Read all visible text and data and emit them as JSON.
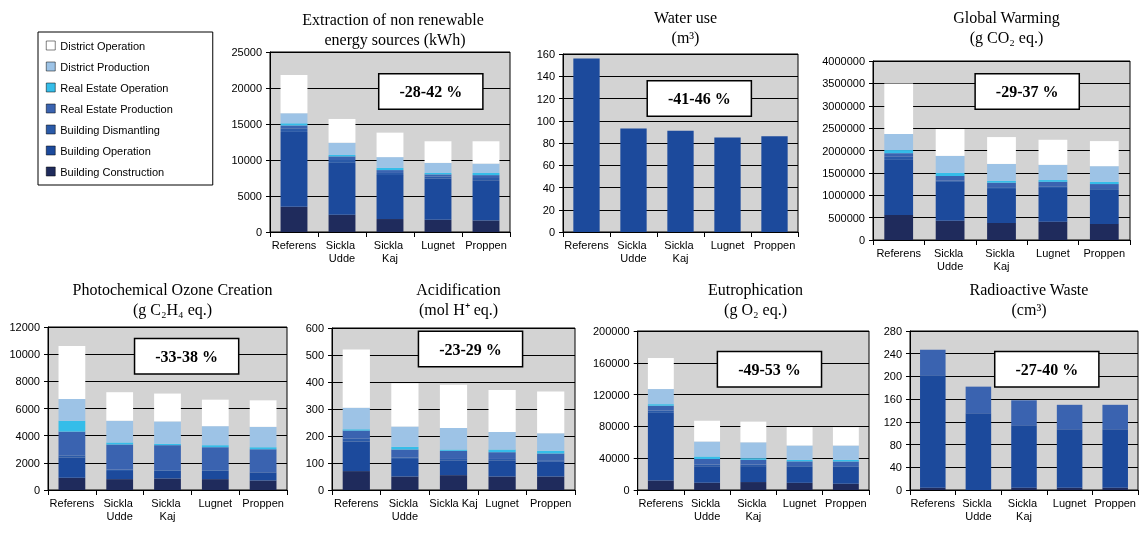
{
  "chart_data": [
    {
      "type": "bar",
      "title": "Extraction of non renewable energy sources (kWh)",
      "categories": [
        "Referens",
        "Sickla Udde",
        "Sickla Kaj",
        "Lugnet",
        "Proppen"
      ],
      "stacked": true,
      "ylim": [
        0,
        25000
      ],
      "yticks": [
        0,
        5000,
        10000,
        15000,
        20000,
        25000
      ],
      "grid": "y",
      "legend": "left",
      "annotations": [
        "-28-42 %"
      ],
      "series": [
        {
          "name": "Building Construction",
          "color": "#1f2b5c",
          "values": [
            3500,
            2400,
            1800,
            1700,
            1600
          ]
        },
        {
          "name": "Building Operation",
          "color": "#1c4a9c",
          "values": [
            10400,
            7200,
            6100,
            5700,
            5600
          ]
        },
        {
          "name": "Building Dismantling",
          "color": "#2a5aa8",
          "values": [
            500,
            400,
            300,
            300,
            300
          ]
        },
        {
          "name": "Real Estate Production",
          "color": "#3a63b0",
          "values": [
            400,
            500,
            400,
            300,
            400
          ]
        },
        {
          "name": "Real Estate Operation",
          "color": "#35bde9",
          "values": [
            300,
            200,
            300,
            200,
            300
          ]
        },
        {
          "name": "District Production",
          "color": "#9dc3e6",
          "values": [
            1400,
            1700,
            1500,
            1400,
            1300
          ]
        },
        {
          "name": "District Operation",
          "color": "#ffffff",
          "values": [
            5300,
            3300,
            3400,
            3000,
            3100
          ]
        }
      ]
    },
    {
      "type": "bar",
      "title": "Water use",
      "subtitle": "(m³)",
      "categories": [
        "Referens",
        "Sickla Udde",
        "Sickla Kaj",
        "Lugnet",
        "Proppen"
      ],
      "values": [
        156,
        93,
        91,
        85,
        86
      ],
      "color": "#1c4a9c",
      "ylim": [
        0,
        160
      ],
      "yticks": [
        0,
        20,
        40,
        60,
        80,
        100,
        120,
        140,
        160
      ],
      "grid": "y",
      "annotations": [
        "-41-46 %"
      ]
    },
    {
      "type": "bar",
      "title": "Global Warming",
      "subtitle": "(g CO₂ eq.)",
      "categories": [
        "Referens",
        "Sickla Udde",
        "Sickla Kaj",
        "Lugnet",
        "Proppen"
      ],
      "stacked": true,
      "ylim": [
        0,
        4000000
      ],
      "yticks": [
        0,
        500000,
        1000000,
        1500000,
        2000000,
        2500000,
        3000000,
        3500000,
        4000000
      ],
      "grid": "y",
      "annotations": [
        "-29-37 %"
      ],
      "series": [
        {
          "color": "#1f2b5c",
          "values": [
            560000,
            430000,
            380000,
            410000,
            360000
          ]
        },
        {
          "color": "#1c4a9c",
          "values": [
            1230000,
            870000,
            760000,
            750000,
            760000
          ]
        },
        {
          "color": "#2a5aa8",
          "values": [
            70000,
            30000,
            40000,
            40000,
            40000
          ]
        },
        {
          "color": "#3a63b0",
          "values": [
            80000,
            100000,
            100000,
            100000,
            90000
          ]
        },
        {
          "color": "#35bde9",
          "values": [
            70000,
            70000,
            40000,
            40000,
            50000
          ]
        },
        {
          "color": "#9dc3e6",
          "values": [
            360000,
            380000,
            380000,
            340000,
            350000
          ]
        },
        {
          "color": "#ffffff",
          "values": [
            1130000,
            600000,
            600000,
            560000,
            560000
          ]
        }
      ]
    },
    {
      "type": "bar",
      "title": "Photochemical Ozone Creation",
      "subtitle": "(g C₂H₄ eq.)",
      "categories": [
        "Referens",
        "Sickla Udde",
        "Sickla Kaj",
        "Lugnet",
        "Proppen"
      ],
      "stacked": true,
      "ylim": [
        0,
        12000
      ],
      "yticks": [
        0,
        2000,
        4000,
        6000,
        8000,
        10000,
        12000
      ],
      "grid": "y",
      "annotations": [
        "-33-38 %"
      ],
      "series": [
        {
          "color": "#1f2b5c",
          "values": [
            900,
            800,
            850,
            800,
            700
          ]
        },
        {
          "color": "#1c4a9c",
          "values": [
            1500,
            600,
            550,
            600,
            600
          ]
        },
        {
          "color": "#2a5aa8",
          "values": [
            150,
            100,
            50,
            50,
            null
          ]
        },
        {
          "color": "#3a63b0",
          "values": [
            1750,
            1850,
            1850,
            1700,
            1700
          ]
        },
        {
          "color": "#35bde9",
          "values": [
            800,
            150,
            100,
            150,
            150
          ]
        },
        {
          "color": "#9dc3e6",
          "values": [
            1600,
            1600,
            1650,
            1400,
            1500
          ]
        },
        {
          "color": "#ffffff",
          "values": [
            3900,
            2100,
            2050,
            1950,
            1950
          ]
        }
      ]
    },
    {
      "type": "bar",
      "title": "Acidification",
      "subtitle": "(mol H⁺ eq.)",
      "categories": [
        "Referens",
        "Sickla Udde",
        "Sickla Kaj",
        "Lugnet",
        "Proppen"
      ],
      "stacked": true,
      "ylim": [
        0,
        600
      ],
      "yticks": [
        0,
        100,
        200,
        300,
        400,
        500,
        600
      ],
      "grid": "y",
      "annotations": [
        "-23-29 %"
      ],
      "series": [
        {
          "color": "#1f2b5c",
          "values": [
            70,
            50,
            55,
            50,
            50
          ]
        },
        {
          "color": "#1c4a9c",
          "values": [
            110,
            65,
            55,
            60,
            55
          ]
        },
        {
          "color": "#2a5aa8",
          "values": [
            10,
            5,
            5,
            5,
            5
          ]
        },
        {
          "color": "#3a63b0",
          "values": [
            30,
            30,
            30,
            25,
            25
          ]
        },
        {
          "color": "#35bde9",
          "values": [
            5,
            10,
            5,
            10,
            10
          ]
        },
        {
          "color": "#9dc3e6",
          "values": [
            80,
            75,
            80,
            65,
            65
          ]
        },
        {
          "color": "#ffffff",
          "values": [
            215,
            160,
            160,
            155,
            155
          ]
        }
      ]
    },
    {
      "type": "bar",
      "title": "Eutrophication",
      "subtitle": "(g O₂ eq.)",
      "categories": [
        "Referens",
        "Sickla Udde",
        "Sickla Kaj",
        "Lugnet",
        "Proppen"
      ],
      "stacked": true,
      "ylim": [
        0,
        200000
      ],
      "yticks": [
        0,
        40000,
        80000,
        120000,
        160000,
        200000
      ],
      "grid": "y",
      "annotations": [
        "-49-53 %"
      ],
      "series": [
        {
          "color": "#1f2b5c",
          "values": [
            12000,
            9000,
            10000,
            9000,
            8000
          ]
        },
        {
          "color": "#1c4a9c",
          "values": [
            85000,
            21000,
            20000,
            20000,
            21000
          ]
        },
        {
          "color": "#2a5aa8",
          "values": [
            3000,
            2000,
            2000,
            1000,
            1000
          ]
        },
        {
          "color": "#3a63b0",
          "values": [
            6000,
            7000,
            6000,
            6000,
            6000
          ]
        },
        {
          "color": "#35bde9",
          "values": [
            2000,
            3000,
            2000,
            2000,
            2000
          ]
        },
        {
          "color": "#9dc3e6",
          "values": [
            19000,
            19000,
            20000,
            18000,
            18000
          ]
        },
        {
          "color": "#ffffff",
          "values": [
            39000,
            26000,
            26000,
            23000,
            23000
          ]
        }
      ]
    },
    {
      "type": "bar",
      "title": "Radioactive Waste",
      "subtitle": "(cm³)",
      "categories": [
        "Referens",
        "Sickla Udde",
        "Sickla Kaj",
        "Lugnet",
        "Proppen"
      ],
      "stacked": true,
      "ylim": [
        0,
        280
      ],
      "yticks": [
        0,
        40,
        80,
        120,
        160,
        200,
        240,
        280
      ],
      "grid": "y",
      "annotations": [
        "-27-40 %"
      ],
      "series": [
        {
          "color": "#1f2b5c",
          "values": [
            4,
            null,
            4,
            4,
            4
          ]
        },
        {
          "color": "#1c4a9c",
          "values": [
            198,
            135,
            110,
            103,
            103
          ]
        },
        {
          "color": "#3a63b0",
          "values": [
            45,
            47,
            44,
            43,
            43
          ]
        }
      ]
    }
  ]
}
